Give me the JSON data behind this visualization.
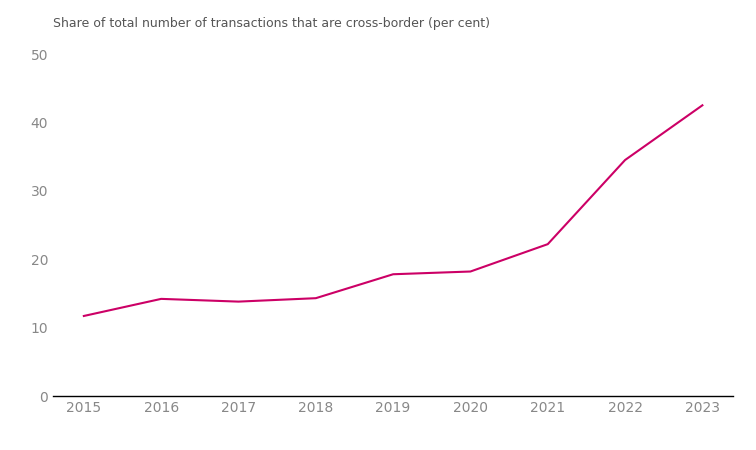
{
  "x": [
    2015,
    2016,
    2017,
    2018,
    2019,
    2020,
    2021,
    2022,
    2023
  ],
  "y": [
    11.7,
    14.2,
    13.8,
    14.3,
    17.8,
    18.2,
    22.2,
    34.5,
    42.5
  ],
  "line_color": "#cc0066",
  "ylabel": "Share of total number of transactions that are cross-border (per cent)",
  "ylim": [
    0,
    50
  ],
  "xlim": [
    2014.6,
    2023.4
  ],
  "yticks": [
    0,
    10,
    20,
    30,
    40,
    50
  ],
  "xticks": [
    2015,
    2016,
    2017,
    2018,
    2019,
    2020,
    2021,
    2022,
    2023
  ],
  "background_color": "#ffffff",
  "line_width": 1.5,
  "tick_fontsize": 10,
  "title_fontsize": 9,
  "tick_color": "#888888",
  "title_color": "#555555"
}
